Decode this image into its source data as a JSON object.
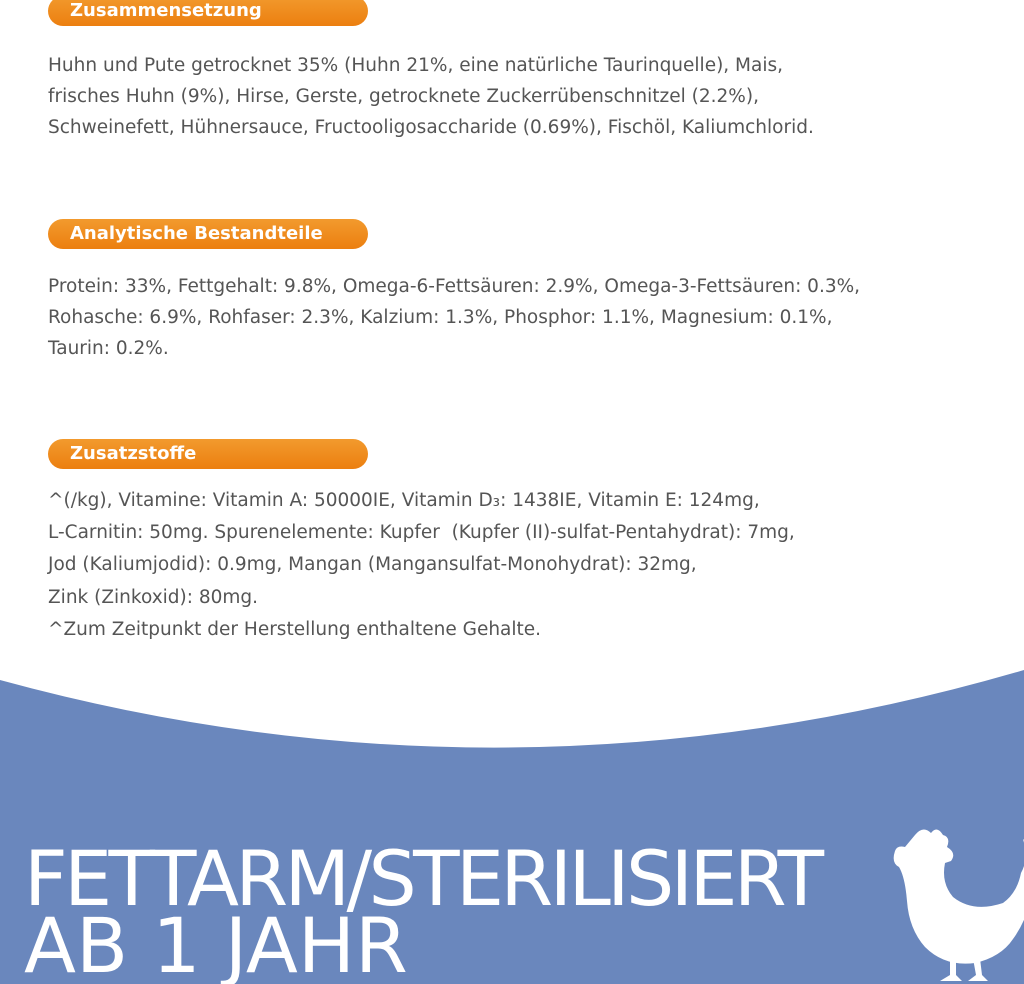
{
  "sections": [
    {
      "heading": "Zusammensetzung",
      "lines": [
        "Huhn und Pute getrocknet 35% (Huhn 21%, eine natürliche Taurinquelle), Mais,",
        "frisches Huhn (9%), Hirse, Gerste, getrocknete Zuckerrübenschnitzel (2.2%),",
        "Schweinefett, Hühnersauce, Fructooligosaccharide (0.69%), Fischöl, Kaliumchlorid."
      ]
    },
    {
      "heading": "Analytische Bestandteile",
      "lines": [
        "Protein: 33%, Fettgehalt: 9.8%, Omega-6-Fettsäuren: 2.9%, Omega-3-Fettsäuren: 0.3%,",
        "Rohasche: 6.9%, Rohfaser: 2.3%, Kalzium: 1.3%, Phosphor: 1.1%, Magnesium: 0.1%,",
        "Taurin: 0.2%."
      ]
    },
    {
      "heading": "Zusatzstoffe",
      "lines": [
        "^(/kg), Vitamine: Vitamin A: 50000IE, Vitamin D₃: 1438IE, Vitamin E: 124mg,",
        "L-Carnitin: 50mg. Spurenelemente: Kupfer  (Kupfer (II)-sulfat-Pentahydrat): 7mg,",
        "Jod (Kaliumjodid): 0.9mg, Mangan (Mangansulfat-Monohydrat): 32mg,",
        "Zink (Zinkoxid): 80mg.",
        "^Zum Zeitpunkt der Herstellung enthaltene Gehalte."
      ]
    }
  ],
  "footer": {
    "title": "FETTARM/STERILISIERT",
    "subtitle": "AB 1 JAHR"
  }
}
